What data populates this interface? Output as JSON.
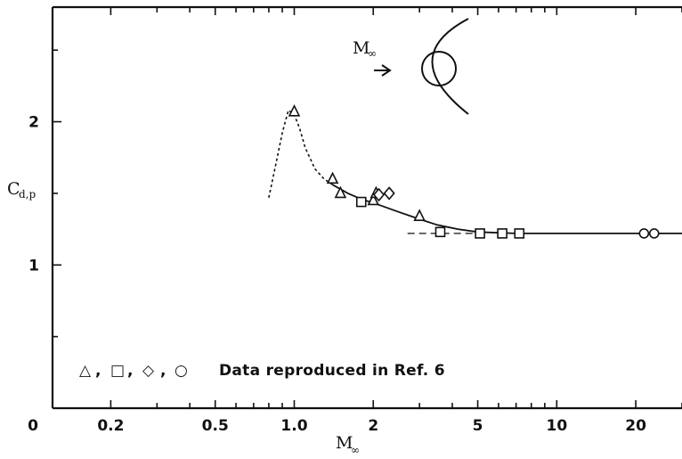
{
  "chart_data": {
    "type": "scatter",
    "x_scale": "log",
    "xlim": [
      0.12,
      30
    ],
    "ylim": [
      0,
      2.8
    ],
    "x_tick_labels": [
      {
        "value": 0.2,
        "label": "0.2"
      },
      {
        "value": 0.5,
        "label": "0.5"
      },
      {
        "value": 1,
        "label": "1.0"
      },
      {
        "value": 2,
        "label": "2"
      },
      {
        "value": 5,
        "label": "5"
      },
      {
        "value": 10,
        "label": "10"
      },
      {
        "value": 20,
        "label": "20"
      }
    ],
    "x_origin_label": "0",
    "y_tick_labels": [
      {
        "value": 1,
        "label": "1"
      },
      {
        "value": 2,
        "label": "2"
      }
    ],
    "xlabel": {
      "main": "M",
      "sub": "∞"
    },
    "ylabel": {
      "main": "C",
      "sub": "d,p"
    },
    "grid": false,
    "series": [
      {
        "marker": "triangle",
        "points": [
          [
            1.0,
            2.07
          ],
          [
            1.4,
            1.6
          ],
          [
            1.5,
            1.5
          ],
          [
            2.0,
            1.45
          ],
          [
            2.05,
            1.5
          ],
          [
            3.0,
            1.34
          ]
        ]
      },
      {
        "marker": "square",
        "points": [
          [
            1.8,
            1.44
          ],
          [
            3.6,
            1.23
          ],
          [
            5.1,
            1.22
          ],
          [
            6.2,
            1.22
          ],
          [
            7.2,
            1.22
          ]
        ]
      },
      {
        "marker": "diamond",
        "points": [
          [
            2.1,
            1.49
          ],
          [
            2.3,
            1.5
          ]
        ]
      },
      {
        "marker": "circle",
        "points": [
          [
            21.5,
            1.22
          ],
          [
            23.5,
            1.22
          ]
        ]
      }
    ],
    "curves": {
      "dashed": [
        [
          0.8,
          1.47
        ],
        [
          0.85,
          1.7
        ],
        [
          0.9,
          1.92
        ],
        [
          0.95,
          2.08
        ],
        [
          1.0,
          2.05
        ],
        [
          1.05,
          1.95
        ],
        [
          1.1,
          1.82
        ],
        [
          1.2,
          1.67
        ],
        [
          1.3,
          1.6
        ],
        [
          1.4,
          1.56
        ]
      ],
      "solid": [
        [
          1.4,
          1.56
        ],
        [
          1.6,
          1.5
        ],
        [
          1.8,
          1.46
        ],
        [
          2.1,
          1.42
        ],
        [
          2.5,
          1.37
        ],
        [
          3.0,
          1.32
        ],
        [
          3.5,
          1.28
        ],
        [
          4.2,
          1.25
        ],
        [
          5.0,
          1.23
        ],
        [
          7.0,
          1.22
        ],
        [
          10,
          1.22
        ],
        [
          20,
          1.22
        ],
        [
          30,
          1.22
        ]
      ],
      "reference_dash": [
        [
          2.7,
          1.22
        ],
        [
          5.0,
          1.22
        ]
      ]
    },
    "annotation": {
      "label_main": "M",
      "label_sub": "∞"
    },
    "legend": {
      "symbols": [
        "△",
        "□",
        "◇",
        "○"
      ],
      "separator": ",",
      "text": "Data reproduced in Ref. 6",
      "placement": "bottom-left"
    }
  }
}
